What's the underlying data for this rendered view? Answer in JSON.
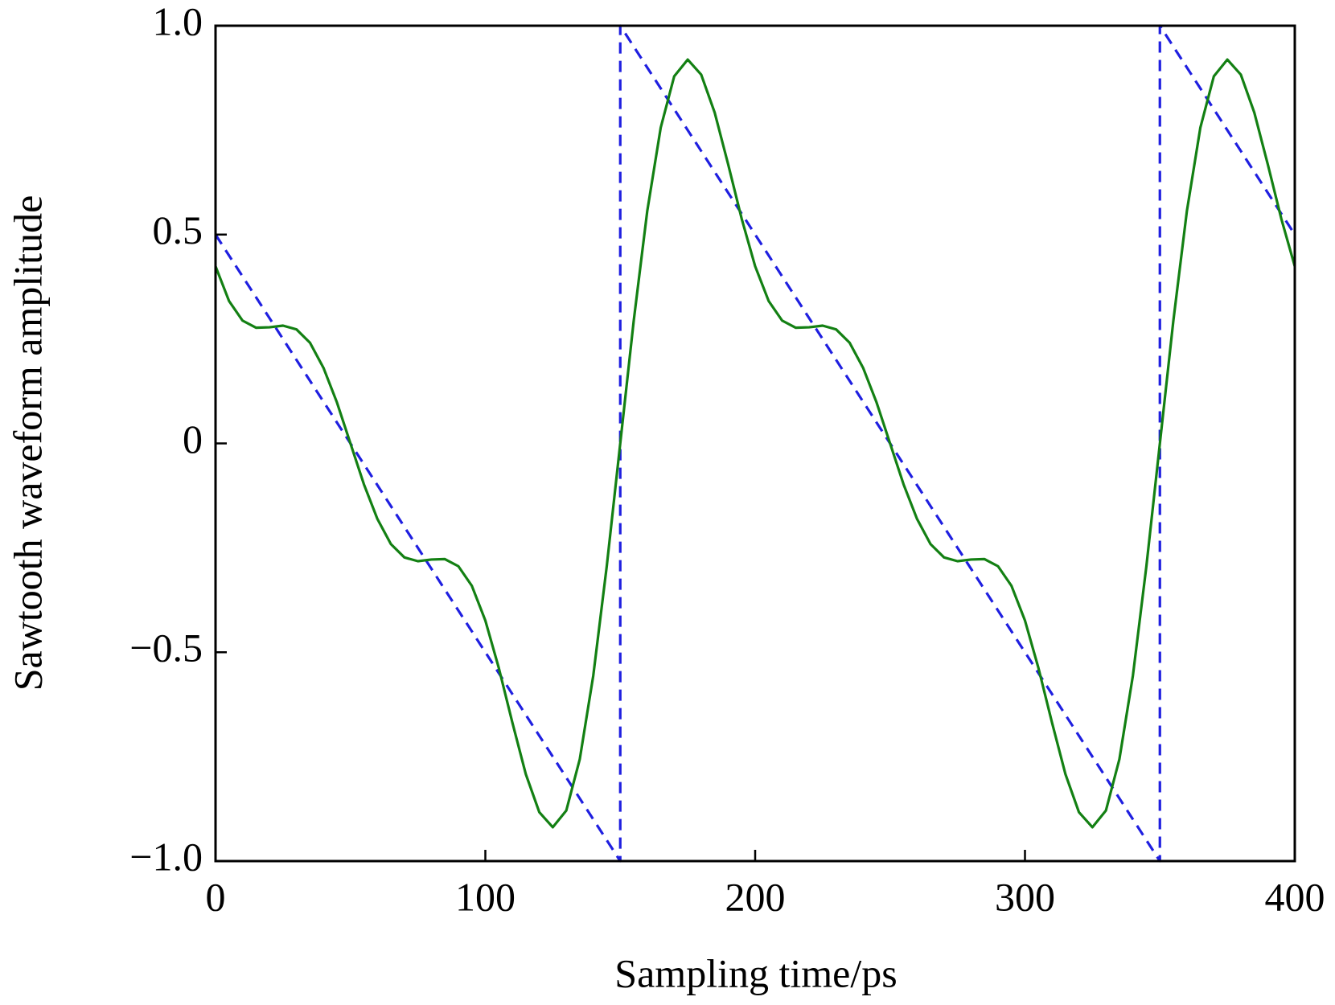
{
  "chart_data": {
    "type": "line",
    "xlabel": "Sampling time/ps",
    "ylabel": "Sawtooth waveform amplitude",
    "xlim": [
      0,
      400
    ],
    "ylim": [
      -1,
      1
    ],
    "xticks": [
      0,
      100,
      200,
      300,
      400
    ],
    "yticks": [
      {
        "value": -1,
        "label": "−1.0"
      },
      {
        "value": -0.5,
        "label": "−0.5"
      },
      0,
      0.5,
      {
        "value": 1,
        "label": "1.0"
      }
    ],
    "grid": false,
    "series": [
      {
        "color": "#1f1fe0",
        "linestyle": "dashed",
        "x": [
          0,
          150,
          150,
          350,
          350,
          400
        ],
        "values": [
          0.5,
          -1,
          1,
          -1,
          1,
          0.5
        ]
      },
      {
        "color": "#138013",
        "linestyle": "solid",
        "x": [
          0,
          5,
          10,
          15,
          20,
          25,
          30,
          35,
          40,
          45,
          50,
          55,
          60,
          65,
          70,
          75,
          80,
          85,
          90,
          95,
          100,
          105,
          110,
          115,
          120,
          125,
          130,
          135,
          140,
          145,
          150,
          155,
          160,
          165,
          170,
          175,
          180,
          185,
          190,
          195,
          200,
          205,
          210,
          215,
          220,
          225,
          230,
          235,
          240,
          245,
          250,
          255,
          260,
          265,
          270,
          275,
          280,
          285,
          290,
          295,
          300,
          305,
          310,
          315,
          320,
          325,
          330,
          335,
          340,
          345,
          350,
          355,
          360,
          365,
          370,
          375,
          380,
          385,
          390,
          395,
          400
        ],
        "values": [
          0.424,
          0.341,
          0.294,
          0.277,
          0.278,
          0.282,
          0.273,
          0.241,
          0.181,
          0.098,
          0,
          -0.098,
          -0.181,
          -0.241,
          -0.273,
          -0.282,
          -0.278,
          -0.277,
          -0.294,
          -0.341,
          -0.424,
          -0.538,
          -0.668,
          -0.792,
          -0.883,
          -0.919,
          -0.879,
          -0.756,
          -0.556,
          -0.294,
          0,
          0.294,
          0.556,
          0.756,
          0.879,
          0.919,
          0.883,
          0.792,
          0.668,
          0.538,
          0.424,
          0.341,
          0.294,
          0.277,
          0.278,
          0.282,
          0.273,
          0.241,
          0.181,
          0.098,
          0,
          -0.098,
          -0.181,
          -0.241,
          -0.273,
          -0.282,
          -0.278,
          -0.277,
          -0.294,
          -0.341,
          -0.424,
          -0.538,
          -0.668,
          -0.792,
          -0.883,
          -0.919,
          -0.879,
          -0.756,
          -0.556,
          -0.294,
          0,
          0.294,
          0.556,
          0.756,
          0.879,
          0.919,
          0.883,
          0.792,
          0.668,
          0.538,
          0.424
        ]
      }
    ]
  }
}
